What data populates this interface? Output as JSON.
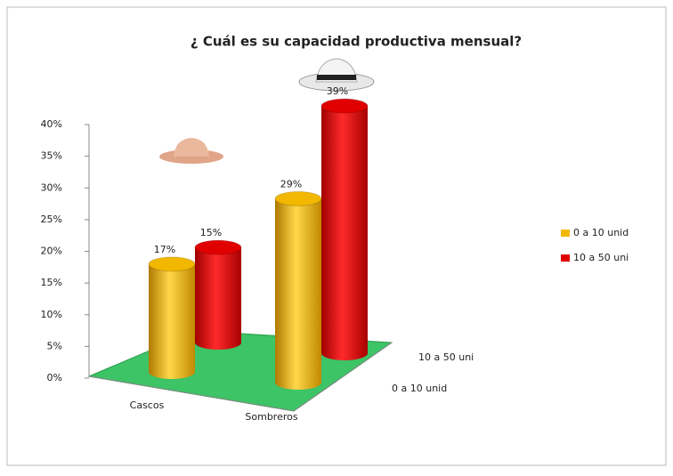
{
  "chart_data": {
    "type": "bar3d",
    "title": "¿ Cuál es su capacidad productiva mensual?",
    "categories": [
      "Cascos",
      "Sombreros"
    ],
    "series": [
      {
        "name": "0 a 10 unid",
        "color": "#f2b800",
        "values": [
          17,
          29
        ],
        "value_labels": [
          "17%",
          "29%"
        ]
      },
      {
        "name": "10 a 50 uni",
        "color": "#e00000",
        "values": [
          15,
          39
        ],
        "value_labels": [
          "15%",
          "39%"
        ]
      }
    ],
    "ylim": [
      0,
      40
    ],
    "yticks": [
      {
        "value": 0,
        "label": "0%"
      },
      {
        "value": 5,
        "label": "5%"
      },
      {
        "value": 10,
        "label": "10%"
      },
      {
        "value": 15,
        "label": "15%"
      },
      {
        "value": 20,
        "label": "20%"
      },
      {
        "value": 25,
        "label": "25%"
      },
      {
        "value": 30,
        "label": "30%"
      },
      {
        "value": 35,
        "label": "35%"
      },
      {
        "value": 40,
        "label": "40%"
      }
    ],
    "legend": "right"
  }
}
